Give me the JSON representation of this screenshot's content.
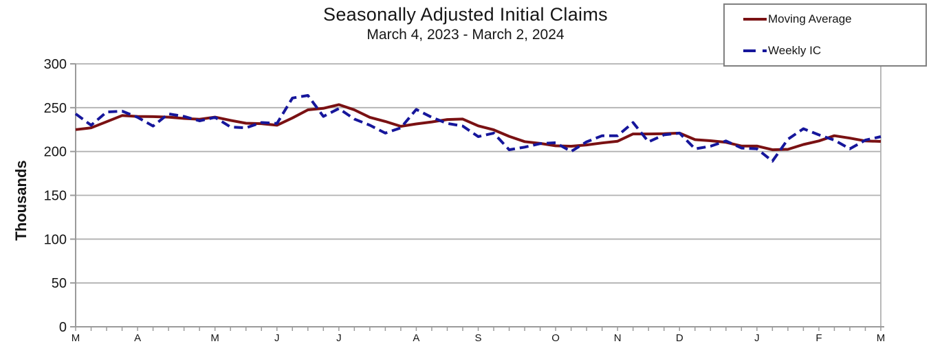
{
  "chart_data": {
    "type": "line",
    "title": "Seasonally Adjusted Initial Claims",
    "subtitle": "March 4, 2023 - March 2, 2024",
    "ylabel": "Thousands",
    "ylim": [
      0,
      300
    ],
    "y_ticks": [
      0,
      50,
      100,
      150,
      200,
      250,
      300
    ],
    "grid": true,
    "legend_position": "top-right",
    "x_unit": "weeks",
    "weeks": 53,
    "x_tick_labels": [
      "M",
      "A",
      "M",
      "J",
      "J",
      "A",
      "S",
      "O",
      "N",
      "D",
      "J",
      "F",
      "M"
    ],
    "x_tick_positions": [
      0,
      4,
      9,
      13,
      17,
      22,
      26,
      31,
      35,
      39,
      44,
      48,
      52
    ],
    "series": [
      {
        "name": "Moving Average",
        "color": "#7A1113",
        "line_style": "solid",
        "line_width": 4,
        "values": [
          225,
          227,
          234,
          241,
          240,
          239.75,
          239.25,
          237.75,
          236.75,
          239.25,
          235.5,
          232.25,
          231.75,
          230,
          238.25,
          247.5,
          249.25,
          253.5,
          247.5,
          239,
          234.25,
          228.75,
          231.5,
          233.75,
          236.5,
          237,
          229.25,
          224.75,
          217.25,
          211.25,
          209.25,
          206.5,
          206,
          207.5,
          209.75,
          211.75,
          220,
          220,
          220.25,
          221,
          213.5,
          212.25,
          210.5,
          206.25,
          206.25,
          202,
          202.5,
          208,
          212,
          218,
          215.25,
          212,
          211.5
        ]
      },
      {
        "name": "Weekly IC",
        "color": "#16169B",
        "line_style": "dashed",
        "dash": [
          13,
          7
        ],
        "line_width": 4,
        "values": [
          243,
          230,
          245,
          246,
          239,
          229,
          243,
          240,
          235,
          239,
          228,
          227,
          233,
          232,
          261,
          264,
          240,
          249,
          237,
          230,
          221,
          227,
          248,
          239,
          232,
          229,
          217,
          221,
          202,
          205,
          209,
          210,
          200,
          211,
          218,
          218,
          233,
          211,
          219,
          221,
          203,
          206,
          212,
          204,
          203,
          189,
          214,
          226,
          219,
          213,
          203,
          213,
          217
        ]
      }
    ]
  }
}
